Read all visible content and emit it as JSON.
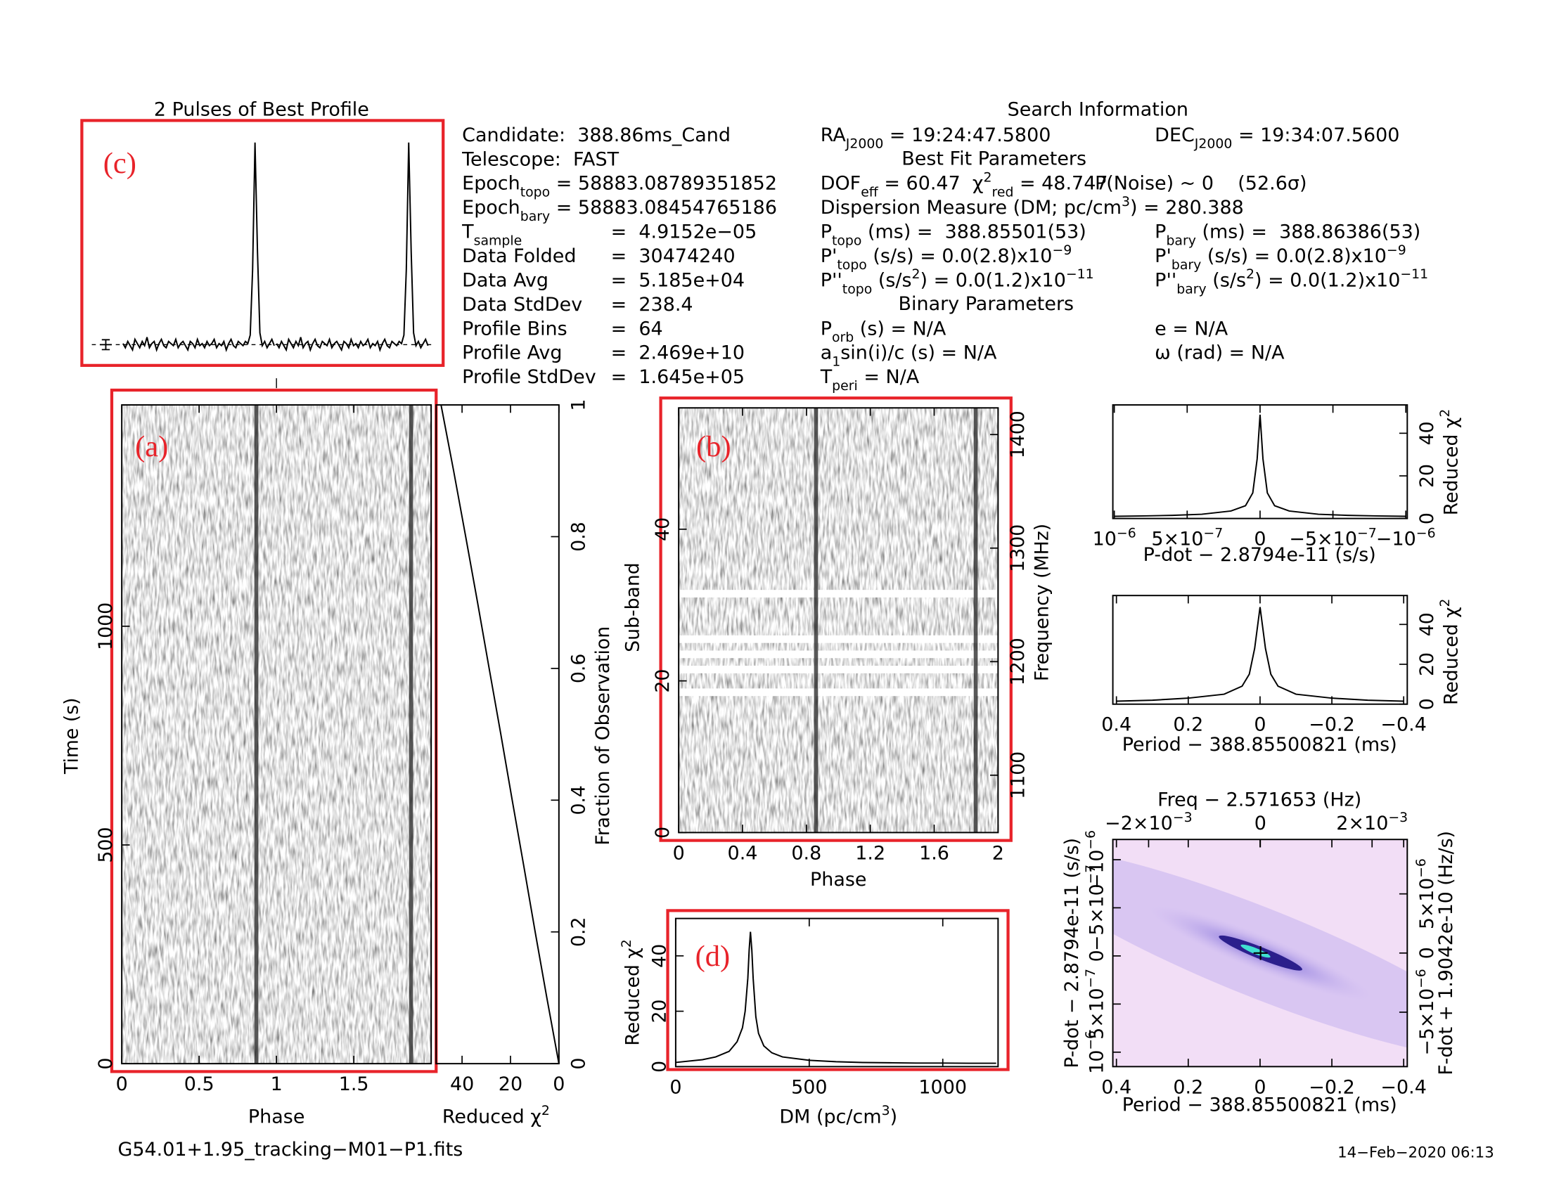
{
  "chart_data": [
    {
      "type": "profile",
      "title": "2 Pulses of Best Profile",
      "xlim": [
        0,
        2
      ],
      "ylim": [
        -0.03,
        1.02
      ],
      "values": [
        0.05,
        0.03,
        0.06,
        0.04,
        0.02,
        0.07,
        0.05,
        0.03,
        0.06,
        0.04,
        0.08,
        0.03,
        0.05,
        0.06,
        0.02,
        0.05,
        0.07,
        0.04,
        0.03,
        0.06,
        0.05,
        0.04,
        0.07,
        0.03,
        0.05,
        0.06,
        0.04,
        0.02,
        0.06,
        0.05,
        0.03,
        0.07,
        0.04,
        0.05,
        0.03,
        0.06,
        0.04,
        0.05,
        0.07,
        0.03,
        0.05,
        0.04,
        0.06,
        0.02,
        0.05,
        0.07,
        0.04,
        0.03,
        0.06,
        0.05,
        0.04,
        0.06,
        0.05,
        0.09,
        0.4,
        1.0,
        0.48,
        0.1,
        0.04,
        0.06,
        0.03,
        0.05,
        0.07,
        0.04
      ]
    },
    {
      "type": "image",
      "xlabel": "Phase",
      "ylabel": "Time (s)",
      "xlim": [
        0,
        2
      ],
      "ylim": [
        0,
        1506
      ],
      "xticks": [
        0,
        0.5,
        1,
        1.5
      ],
      "yticks": [
        0,
        500,
        1000
      ],
      "pulse_phases": [
        0.87,
        1.87
      ]
    },
    {
      "type": "line",
      "xlabel": [
        {
          "text": "Reduced χ"
        },
        {
          "sup": "2"
        }
      ],
      "ylabel": "Fraction of Observation",
      "xlim": [
        50.7,
        0
      ],
      "ylim": [
        0,
        1
      ],
      "xticks": [
        40,
        20,
        0
      ],
      "y2ticks": [
        0,
        0.2,
        0.4,
        0.6,
        0.8,
        1
      ],
      "fraction": [
        0,
        0.1,
        0.2,
        0.3,
        0.4,
        0.5,
        0.6,
        0.7,
        0.8,
        0.9,
        1
      ],
      "values": [
        0,
        5,
        9.8,
        14.5,
        19.3,
        24,
        28.8,
        33.6,
        38.5,
        43.5,
        48.7
      ]
    },
    {
      "type": "image",
      "xlabel": "Phase",
      "ylabel": "Sub-band",
      "y2label": "Frequency (MHz)",
      "xlim": [
        0,
        2
      ],
      "ylim": [
        0,
        56
      ],
      "y2lim": [
        1049.5,
        1423.5
      ],
      "xticks": [
        0,
        0.4,
        0.8,
        1.2,
        1.6,
        2
      ],
      "yticks": [
        0,
        20,
        40
      ],
      "y2ticks": [
        1100,
        1200,
        1300,
        1400
      ],
      "pulse_phases": [
        0.86,
        1.86
      ],
      "zapped_subbands": [
        18,
        21,
        23,
        25,
        31
      ]
    },
    {
      "type": "line",
      "xlabel": [
        {
          "text": "DM (pc/cm"
        },
        {
          "sup": "3"
        },
        {
          "text": ")"
        }
      ],
      "ylabel": [
        {
          "text": "Reduced χ"
        },
        {
          "sup": "2"
        }
      ],
      "xlim": [
        0,
        1207
      ],
      "ylim": [
        0,
        53.5
      ],
      "xticks": [
        0,
        500,
        1000
      ],
      "yticks": [
        0,
        20,
        40
      ],
      "x": [
        0,
        100,
        150,
        200,
        230,
        250,
        260,
        270,
        275,
        280,
        285,
        290,
        300,
        310,
        330,
        360,
        400,
        500,
        600,
        700,
        800,
        900,
        1000,
        1100,
        1200
      ],
      "values": [
        1.5,
        2.5,
        3.5,
        5.5,
        9,
        14,
        20,
        32,
        42,
        48.7,
        42,
        32,
        18,
        12,
        7.5,
        5,
        3.5,
        2.3,
        1.8,
        1.5,
        1.4,
        1.3,
        1.3,
        1.2,
        1.2
      ]
    },
    {
      "type": "line",
      "xlabel": "P-dot − 2.8794e-11 (s/s)",
      "y2label": [
        {
          "text": "Reduced χ"
        },
        {
          "sup": "2"
        }
      ],
      "xlim": [
        1.01e-06,
        -1.01e-06
      ],
      "ylim": [
        0,
        53.3
      ],
      "xticks": [
        {
          "value": 1e-06,
          "label": [
            {
              "text": "10"
            },
            {
              "sup": "−6"
            }
          ]
        },
        {
          "value": 5e-07,
          "label": [
            {
              "text": "5×10"
            },
            {
              "sup": "−7"
            }
          ]
        },
        0,
        {
          "value": -5e-07,
          "label": [
            {
              "text": "−5×10"
            },
            {
              "sup": "−7"
            }
          ]
        },
        {
          "value": -1e-06,
          "label": [
            {
              "text": "−10"
            },
            {
              "sup": "−6"
            }
          ]
        }
      ],
      "y2ticks": [
        0,
        20,
        40
      ],
      "x": [
        -1e-06,
        -8e-07,
        -6e-07,
        -4e-07,
        -2e-07,
        -1e-07,
        -5e-08,
        -2e-08,
        0,
        2e-08,
        5e-08,
        1e-07,
        2e-07,
        4e-07,
        6e-07,
        8e-07,
        1e-06
      ],
      "values": [
        1,
        1.2,
        1.5,
        2,
        3.5,
        6,
        12,
        28,
        48.7,
        28,
        12,
        6,
        3.5,
        2,
        1.5,
        1.2,
        1
      ]
    },
    {
      "type": "line",
      "xlabel": "Period − 388.85500821 (ms)",
      "y2label": [
        {
          "text": "Reduced χ"
        },
        {
          "sup": "2"
        }
      ],
      "xlim": [
        0.41,
        -0.41
      ],
      "ylim": [
        0,
        54.5
      ],
      "xticks": [
        0.4,
        0.2,
        0,
        {
          "value": -0.2,
          "label": "−0.2"
        },
        {
          "value": -0.4,
          "label": "−0.4"
        }
      ],
      "y2ticks": [
        0,
        20,
        40
      ],
      "x": [
        -0.4,
        -0.3,
        -0.2,
        -0.1,
        -0.05,
        -0.03,
        -0.015,
        0,
        0.015,
        0.03,
        0.05,
        0.1,
        0.2,
        0.3,
        0.4
      ],
      "values": [
        1.5,
        2,
        3,
        5,
        9,
        15,
        28,
        48.7,
        28,
        15,
        9,
        5,
        3,
        2,
        1.5
      ]
    },
    {
      "type": "plane",
      "x2label": "Freq − 2.571653 (Hz)",
      "xlabel": "Period − 388.85500821 (ms)",
      "ylabel": "P-dot − 2.8794e-11 (s/s)",
      "y2label": "F-dot + 1.9042e-10 (Hz/s)",
      "xlim": [
        0.41,
        -0.41
      ],
      "x2lim": [
        -0.00264,
        0.00263
      ],
      "ylim": [
        1.15e-06,
        -1.21e-06
      ],
      "y2lim": [
        -9.6e-06,
        9.6e-06
      ],
      "xticks": [
        0.4,
        0.2,
        0,
        {
          "value": -0.2,
          "label": "−0.2"
        },
        {
          "value": -0.4,
          "label": "−0.4"
        }
      ],
      "x2ticks": [
        {
          "value": -0.002,
          "label": [
            {
              "text": "−2×10"
            },
            {
              "sup": "−3"
            }
          ]
        },
        0,
        {
          "value": 0.002,
          "label": [
            {
              "text": "2×10"
            },
            {
              "sup": "−3"
            }
          ]
        }
      ],
      "yticks": [
        {
          "value": -1e-06,
          "label": [
            {
              "text": "−10"
            },
            {
              "sup": "−6"
            }
          ]
        },
        {
          "value": -5e-07,
          "label": [
            {
              "text": "−5×10"
            },
            {
              "sup": "−7"
            }
          ]
        },
        0,
        {
          "value": 5e-07,
          "label": [
            {
              "text": "5×10"
            },
            {
              "sup": "−7"
            }
          ]
        },
        {
          "value": 1e-06,
          "label": [
            {
              "text": "10"
            },
            {
              "sup": "−6"
            }
          ]
        }
      ],
      "y2ticks": [
        {
          "value": 5e-06,
          "label": [
            {
              "text": "5×10"
            },
            {
              "sup": "−6"
            }
          ]
        },
        0,
        {
          "value": -5e-06,
          "label": [
            {
              "text": "−5×10"
            },
            {
              "sup": "−6"
            }
          ]
        }
      ]
    }
  ],
  "panel_labels": [
    "(a)",
    "(b)",
    "(c)",
    "(d)"
  ],
  "filename": "G54.01+1.95_tracking−M01−P1.fits",
  "date": "14−Feb−2020 06:13",
  "info": {
    "header": "Search Information",
    "best_fit_header": "Best Fit Parameters",
    "binary_header": "Binary Parameters",
    "p_noise": "P(Noise) ~ 0    (52.6σ)",
    "column_1": [
      {
        "label": [
          {
            "text": "Candidate:  388.86ms_Cand"
          }
        ]
      },
      {
        "label": [
          {
            "text": "Telescope:  FAST"
          }
        ]
      },
      {
        "label": [
          {
            "text": "Epoch"
          },
          {
            "sub": "topo"
          },
          {
            "text": " = 58883.08789351852"
          }
        ]
      },
      {
        "label": [
          {
            "text": "Epoch"
          },
          {
            "sub": "bary"
          },
          {
            "text": " = 58883.08454765186"
          }
        ]
      },
      {
        "label": [
          {
            "text": "T"
          },
          {
            "sub": "sample"
          }
        ],
        "value": "=  4.9152e−05"
      },
      {
        "label": [
          {
            "text": "Data Folded"
          }
        ],
        "value": "=  30474240"
      },
      {
        "label": [
          {
            "text": "Data Avg"
          }
        ],
        "value": "=  5.185e+04"
      },
      {
        "label": [
          {
            "text": "Data StdDev"
          }
        ],
        "value": "=  238.4"
      },
      {
        "label": [
          {
            "text": "Profile Bins"
          }
        ],
        "value": "=  64"
      },
      {
        "label": [
          {
            "text": "Profile Avg"
          }
        ],
        "value": "=  2.469e+10"
      },
      {
        "label": [
          {
            "text": "Profile StdDev"
          }
        ],
        "value": "=  1.645e+05"
      }
    ],
    "column_2": [
      [
        {
          "text": "RA"
        },
        {
          "sub": "J2000"
        },
        {
          "text": " = 19:24:47.5800"
        }
      ],
      [
        {
          "text": "DOF"
        },
        {
          "sub": "eff"
        },
        {
          "text": " = 60.47  χ"
        },
        {
          "sup": "2"
        },
        {
          "sub": "red"
        },
        {
          "text": " = 48.747"
        }
      ],
      [
        {
          "text": "Dispersion Measure (DM; pc/cm"
        },
        {
          "sup": "3"
        },
        {
          "text": ") = 280.388"
        }
      ],
      [
        {
          "text": "P"
        },
        {
          "sub": "topo"
        },
        {
          "text": " (ms) =  388.85501(53)"
        }
      ],
      [
        {
          "text": "P'"
        },
        {
          "sub": "topo"
        },
        {
          "text": " (s/s) = 0.0(2.8)x10"
        },
        {
          "sup": "−9"
        }
      ],
      [
        {
          "text": "P''"
        },
        {
          "sub": "topo"
        },
        {
          "text": " (s/s"
        },
        {
          "sup": "2"
        },
        {
          "text": ") = 0.0(1.2)x10"
        },
        {
          "sup": "−11"
        }
      ],
      [
        {
          "text": "P"
        },
        {
          "sub": "orb"
        },
        {
          "text": " (s) = N/A"
        }
      ],
      [
        {
          "text": "a"
        },
        {
          "sub": "1"
        },
        {
          "text": "sin(i)/c (s) = N/A"
        }
      ],
      [
        {
          "text": "T"
        },
        {
          "sub": "peri"
        },
        {
          "text": " = N/A"
        }
      ]
    ],
    "column_3": [
      [
        {
          "text": "DEC"
        },
        {
          "sub": "J2000"
        },
        {
          "text": " = 19:34:07.5600"
        }
      ],
      [
        {
          "text": "P"
        },
        {
          "sub": "bary"
        },
        {
          "text": " (ms) =  388.86386(53)"
        }
      ],
      [
        {
          "text": "P'"
        },
        {
          "sub": "bary"
        },
        {
          "text": " (s/s) = 0.0(2.8)x10"
        },
        {
          "sup": "−9"
        }
      ],
      [
        {
          "text": "P''"
        },
        {
          "sub": "bary"
        },
        {
          "text": " (s/s"
        },
        {
          "sup": "2"
        },
        {
          "text": ") = 0.0(1.2)x10"
        },
        {
          "sup": "−11"
        }
      ],
      [
        {
          "text": "e = N/A"
        }
      ],
      [
        {
          "text": "ω (rad) = N/A"
        }
      ]
    ]
  }
}
